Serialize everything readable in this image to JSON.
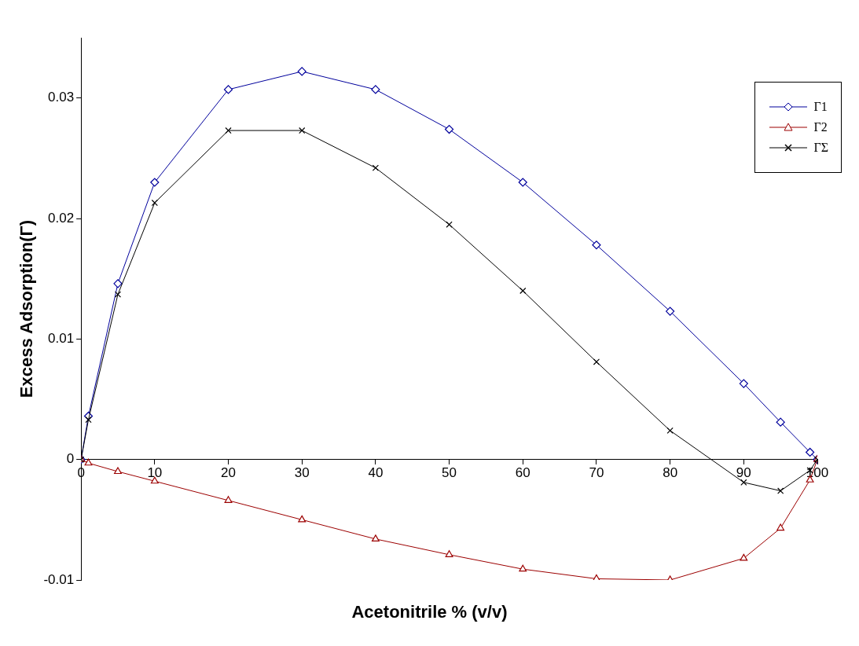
{
  "chart_data": {
    "type": "line",
    "xlabel": "Acetonitrile % (v/v)",
    "ylabel": "Excess Adsorption(Γ)",
    "x": [
      0,
      1,
      5,
      10,
      20,
      30,
      40,
      50,
      60,
      70,
      80,
      90,
      95,
      99,
      100
    ],
    "xlim": [
      0,
      100
    ],
    "xticks": [
      0,
      10,
      20,
      30,
      40,
      50,
      60,
      70,
      80,
      90,
      100
    ],
    "ylim": [
      -0.01,
      0.035
    ],
    "yticks": [
      -0.01,
      0,
      0.01,
      0.02,
      0.03
    ],
    "grid": false,
    "legend": "top right",
    "series": [
      {
        "name": "Γ1",
        "color": "#00009c",
        "marker": "diamond",
        "values": [
          0,
          0.0036,
          0.0146,
          0.023,
          0.0307,
          0.0322,
          0.0307,
          0.0274,
          0.023,
          0.0178,
          0.0123,
          0.0063,
          0.0031,
          0.0006,
          0
        ]
      },
      {
        "name": "Γ2",
        "color": "#9c0000",
        "marker": "triangle",
        "values": [
          0,
          -0.0003,
          -0.001,
          -0.0018,
          -0.0034,
          -0.005,
          -0.0066,
          -0.0079,
          -0.0091,
          -0.0099,
          -0.01,
          -0.0082,
          -0.0057,
          -0.0017,
          0
        ]
      },
      {
        "name": "ΓΣ",
        "color": "#000000",
        "marker": "cross",
        "values": [
          0,
          0.0033,
          0.0137,
          0.0213,
          0.0273,
          0.0273,
          0.0242,
          0.0195,
          0.014,
          0.0081,
          0.0024,
          -0.0019,
          -0.0026,
          -0.0009,
          0
        ]
      }
    ]
  }
}
